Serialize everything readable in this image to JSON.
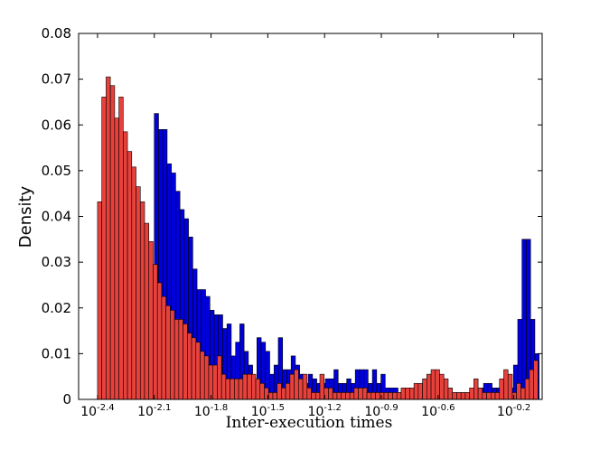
{
  "chart_data": {
    "type": "bar",
    "xlabel": "Inter-execution times",
    "ylabel": "Density",
    "xscale": "log",
    "xlim": [
      -2.5,
      -0.05
    ],
    "ylim": [
      0,
      0.08
    ],
    "grid": false,
    "legend": "none",
    "x_tick_labels": [
      {
        "label": "10",
        "exp": "-2.4",
        "value": -2.4
      },
      {
        "label": "10",
        "exp": "-2.1",
        "value": -2.1
      },
      {
        "label": "10",
        "exp": "-1.8",
        "value": -1.8
      },
      {
        "label": "10",
        "exp": "-1.5",
        "value": -1.5
      },
      {
        "label": "10",
        "exp": "-1.2",
        "value": -1.2
      },
      {
        "label": "10",
        "exp": "-0.9",
        "value": -0.9
      },
      {
        "label": "10",
        "exp": "-0.6",
        "value": -0.6
      },
      {
        "label": "10",
        "exp": "-0.2",
        "value": -0.2
      }
    ],
    "y_tick_labels": [
      "0",
      "0.01",
      "0.02",
      "0.03",
      "0.04",
      "0.05",
      "0.06",
      "0.07",
      "0.08"
    ],
    "y_ticks": [
      0,
      0.01,
      0.02,
      0.03,
      0.04,
      0.05,
      0.06,
      0.07,
      0.08
    ],
    "series": [
      {
        "color": "#0000dd",
        "bin_start": -2.1,
        "bin_width": 0.0226,
        "values": [
          0.0625,
          0.059,
          0.059,
          0.0515,
          0.0495,
          0.0455,
          0.0415,
          0.0395,
          0.0355,
          0.0285,
          0.024,
          0.024,
          0.0225,
          0.0195,
          0.0185,
          0.0185,
          0.0155,
          0.0165,
          0.0095,
          0.0125,
          0.0165,
          0.0105,
          0.0075,
          0.0045,
          0.0135,
          0.0125,
          0.0105,
          0.0055,
          0.0075,
          0.0135,
          0.0065,
          0.0065,
          0.0095,
          0.0075,
          0.0055,
          0.0035,
          0.0055,
          0.0045,
          0.0035,
          0.0035,
          0.0045,
          0.0045,
          0.0065,
          0.0035,
          0.0035,
          0.0045,
          0.0035,
          0.0065,
          0.0065,
          0.0065,
          0.0035,
          0.0065,
          0.0035,
          0.0055,
          0.0025,
          0.0025,
          0.0025,
          0.0015,
          0.0015,
          0.0015,
          0.0015,
          0.0015,
          0.0015,
          0.0015,
          0.0015,
          0.0015,
          0.0015,
          0.0015,
          0.0015,
          0.0015,
          0.0015,
          0.0015,
          0.0015,
          0.0015,
          0.0015,
          0.0025,
          0.0025,
          0.0035,
          0.0035,
          0.0025,
          0.0025,
          0.0025,
          0.0025,
          0.0025,
          0.0075,
          0.0175,
          0.035,
          0.035,
          0.0175,
          0.01
        ]
      },
      {
        "color": "#e8413c",
        "bin_start": -2.4,
        "bin_width": 0.0226,
        "values": [
          0.0432,
          0.0661,
          0.0705,
          0.0686,
          0.0615,
          0.0661,
          0.0585,
          0.0542,
          0.0508,
          0.0465,
          0.0432,
          0.0385,
          0.0345,
          0.0295,
          0.0255,
          0.0225,
          0.0205,
          0.0195,
          0.0175,
          0.0175,
          0.0165,
          0.0145,
          0.0135,
          0.0125,
          0.0105,
          0.0095,
          0.0075,
          0.0075,
          0.0095,
          0.0055,
          0.0045,
          0.0045,
          0.0045,
          0.0045,
          0.0055,
          0.0055,
          0.0055,
          0.0045,
          0.0035,
          0.0025,
          0.0015,
          0.0015,
          0.0035,
          0.0025,
          0.0035,
          0.0055,
          0.0065,
          0.0045,
          0.0055,
          0.0025,
          0.0015,
          0.0015,
          0.0055,
          0.0025,
          0.0025,
          0.0015,
          0.0015,
          0.0015,
          0.0015,
          0.0015,
          0.0025,
          0.0025,
          0.0025,
          0.0015,
          0.0015,
          0.0015,
          0.0015,
          0.0015,
          0.0015,
          0.0015,
          0.0015,
          0.0025,
          0.0025,
          0.0025,
          0.0035,
          0.0035,
          0.0045,
          0.0055,
          0.0065,
          0.0065,
          0.0055,
          0.0045,
          0.0025,
          0.0015,
          0.0015,
          0.0015,
          0.0015,
          0.0025,
          0.0045,
          0.0025,
          0.0015,
          0.0015,
          0.0015,
          0.0015,
          0.0045,
          0.0065,
          0.0055,
          0.0015,
          0.0035,
          0.0025,
          0.0045,
          0.0065,
          0.0085,
          0.0055,
          0.0035,
          0.0025,
          0.0035,
          0.0045,
          0.0065,
          0.0075,
          0.0085,
          0.0075,
          0.0055,
          0.0025,
          0.0015,
          0.0015,
          0.0015,
          0.0015,
          0.0015,
          0.0015,
          0.0015,
          0.0015,
          0.0015,
          0.0015,
          0.0015,
          0.0015,
          0.0015,
          0.0025,
          0.0035,
          0.0045,
          0.0065,
          0.0075,
          0.0085,
          0.0065,
          0.0055,
          0.0035,
          0.0025,
          0.0015,
          0.0025,
          0.0035,
          0.0045,
          0.0065,
          0.0075,
          0.0095,
          0.0085,
          0.0065,
          0.0045,
          0.0025,
          0.0025,
          0.0045,
          0.0075,
          0.0095,
          0.0075,
          0.0045,
          0.0035,
          0.0025,
          0.0025,
          0.0045,
          0.0065,
          0.0095,
          0.0125,
          0.0145,
          0.0135,
          0.0095,
          0.0055,
          0.0045,
          0.0045,
          0.0035,
          0.0035,
          0.0045,
          0.0025,
          0.0035,
          0.0055,
          0.0075,
          0.0095,
          0.0085,
          0.0055,
          0.0045,
          0.0035,
          0.0025,
          0.0015,
          0.0015,
          0.0025,
          0.0045,
          0.0065,
          0.0085,
          0.0095,
          0.0075,
          0.0045,
          0.0025,
          0.0015,
          0.0015,
          0.0015,
          0.0015,
          0.0015,
          0.0015,
          0.0015,
          0.0015,
          0.0015,
          0.0015,
          0.0015,
          0.0015,
          0.0015,
          0.0015,
          0.0015,
          0.0015,
          0.0015,
          0.0015,
          0.0015,
          0.0015,
          0.0015,
          0.0015,
          0.0015,
          0.0015,
          0.0015,
          0.0015,
          0.0015,
          0.0015,
          0.0015,
          0.0015,
          0.0015,
          0.0015,
          0.0015,
          0.0015,
          0.0015,
          0.0015,
          0.0015,
          0.0015,
          0.0015,
          0.0015,
          0.0015,
          0.0015,
          0.0015,
          0.0015,
          0.0015,
          0.0015,
          0.0015,
          0.0015,
          0.0015,
          0.0015,
          0.0015,
          0.0015,
          0.0015,
          0.0015,
          0.0015,
          0.0015,
          0.0015,
          0.0015,
          0.0015,
          0.0015,
          0.0015,
          0.0015,
          0.0015
        ]
      }
    ]
  }
}
